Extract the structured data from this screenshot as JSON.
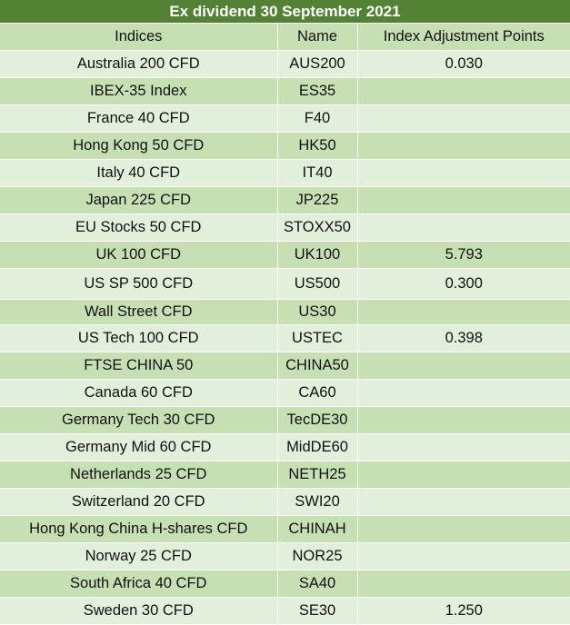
{
  "title": "Ex dividend 30 September 2021",
  "columns": [
    "Indices",
    "Name",
    "Index Adjustment Points"
  ],
  "rows": [
    {
      "index": "Australia 200 CFD",
      "name": "AUS200",
      "points": "0.030"
    },
    {
      "index": "IBEX-35 Index",
      "name": "ES35",
      "points": ""
    },
    {
      "index": "France 40 CFD",
      "name": "F40",
      "points": ""
    },
    {
      "index": "Hong Kong 50 CFD",
      "name": "HK50",
      "points": ""
    },
    {
      "index": "Italy 40 CFD",
      "name": "IT40",
      "points": ""
    },
    {
      "index": "Japan 225 CFD",
      "name": "JP225",
      "points": ""
    },
    {
      "index": "EU Stocks 50 CFD",
      "name": "STOXX50",
      "points": ""
    },
    {
      "index": "UK 100 CFD",
      "name": "UK100",
      "points": "5.793"
    },
    {
      "index": "US SP 500 CFD",
      "name": "US500",
      "points": "0.300"
    },
    {
      "index": "Wall Street CFD",
      "name": "US30",
      "points": ""
    },
    {
      "index": "US Tech 100 CFD",
      "name": "USTEC",
      "points": "0.398"
    },
    {
      "index": "FTSE CHINA 50",
      "name": "CHINA50",
      "points": ""
    },
    {
      "index": "Canada 60 CFD",
      "name": "CA60",
      "points": ""
    },
    {
      "index": "Germany Tech 30 CFD",
      "name": "TecDE30",
      "points": ""
    },
    {
      "index": "Germany Mid 60 CFD",
      "name": "MidDE60",
      "points": ""
    },
    {
      "index": "Netherlands 25 CFD",
      "name": "NETH25",
      "points": ""
    },
    {
      "index": "Switzerland 20 CFD",
      "name": "SWI20",
      "points": ""
    },
    {
      "index": "Hong Kong China H-shares CFD",
      "name": "CHINAH",
      "points": ""
    },
    {
      "index": "Norway 25 CFD",
      "name": "NOR25",
      "points": ""
    },
    {
      "index": "South Africa 40 CFD",
      "name": "SA40",
      "points": ""
    },
    {
      "index": "Sweden 30 CFD",
      "name": "SE30",
      "points": "1.250"
    }
  ]
}
